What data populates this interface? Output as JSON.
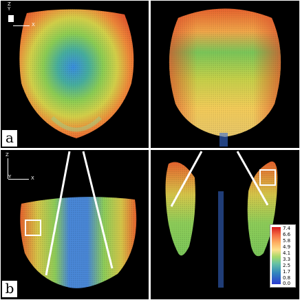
{
  "panels": [
    {
      "label": "a"
    },
    {
      "label": "b"
    }
  ],
  "axes_top": {
    "z": "Z",
    "y": "Y",
    "x": "X"
  },
  "axes_bottom": {
    "z": "Z",
    "y": "Y",
    "x": "X"
  },
  "legend": {
    "ticks": [
      "7.4",
      "6.6",
      "5.8",
      "4.9",
      "4.1",
      "3.3",
      "2.5",
      "1.7",
      "0.8",
      "0.0"
    ],
    "colors": [
      "#d7191c",
      "#f46d43",
      "#fdae61",
      "#fee08b",
      "#a6d96a",
      "#66c2a5",
      "#3288bd",
      "#2b3bd0"
    ]
  }
}
